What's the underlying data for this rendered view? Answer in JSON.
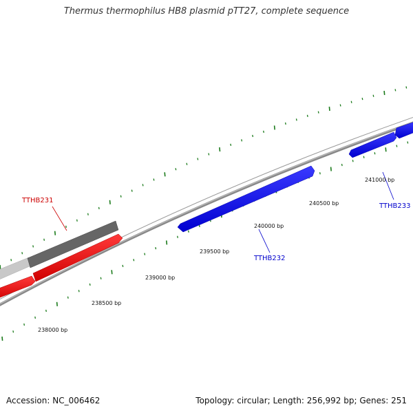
{
  "title": "Thermus thermophilus HB8 plasmid pTT27, complete sequence",
  "footer": {
    "accession": "Accession: NC_006462",
    "summary": "Topology: circular; Length: 256,992 bp; Genes: 251"
  },
  "scale_labels": [
    "238000 bp",
    "238500 bp",
    "239000 bp",
    "239500 bp",
    "240000 bp",
    "240500 bp",
    "241000 bp"
  ],
  "genes": [
    {
      "label": "TTHB231",
      "color": "#cc0000"
    },
    {
      "label": "TTHB232",
      "color": "#0000cc"
    },
    {
      "label": "TTHB233",
      "color": "#0000cc"
    }
  ],
  "colors": {
    "forward_cds": "#0000ff",
    "reverse_cds": "#ff0000",
    "gene_dark": "#666666",
    "gene_light": "#c8c8c8",
    "backbone": "#888888",
    "tick": "#1a7a1a"
  }
}
